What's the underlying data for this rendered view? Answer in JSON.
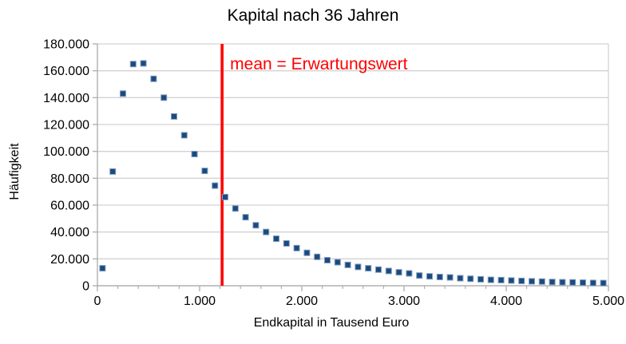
{
  "chart_data": {
    "type": "scatter",
    "title": "Kapital nach 36 Jahren",
    "xlabel": "Endkapital in Tausend Euro",
    "ylabel": "Häufigkeit",
    "xlim": [
      0,
      5000
    ],
    "ylim": [
      0,
      180000
    ],
    "grid": "horizontal",
    "legend_position": "none",
    "x_ticks": {
      "values": [
        0,
        1000,
        2000,
        3000,
        4000,
        5000
      ],
      "labels": [
        "0",
        "1.000",
        "2.000",
        "3.000",
        "4.000",
        "5.000"
      ],
      "minor_interval": 200
    },
    "y_ticks": {
      "values": [
        0,
        20000,
        40000,
        60000,
        80000,
        100000,
        120000,
        140000,
        160000,
        180000
      ],
      "labels": [
        "0",
        "20.000",
        "40.000",
        "60.000",
        "80.000",
        "100.000",
        "120.000",
        "140.000",
        "160.000",
        "180.000"
      ]
    },
    "mean_line": {
      "x": 1220,
      "color": "#FF0000",
      "label": "mean = Erwartungswert"
    },
    "series": [
      {
        "name": "Häufigkeit",
        "marker": "square",
        "color": "#1B4A7E",
        "edge_color": "#7E9CC0",
        "points": [
          [
            50,
            13000
          ],
          [
            150,
            85000
          ],
          [
            250,
            143000
          ],
          [
            350,
            165000
          ],
          [
            450,
            165500
          ],
          [
            550,
            154000
          ],
          [
            650,
            140000
          ],
          [
            750,
            126000
          ],
          [
            850,
            112000
          ],
          [
            950,
            98000
          ],
          [
            1050,
            85500
          ],
          [
            1150,
            74500
          ],
          [
            1250,
            66000
          ],
          [
            1350,
            57500
          ],
          [
            1450,
            51000
          ],
          [
            1550,
            45000
          ],
          [
            1650,
            40000
          ],
          [
            1750,
            35000
          ],
          [
            1850,
            31500
          ],
          [
            1950,
            28000
          ],
          [
            2050,
            24500
          ],
          [
            2150,
            21500
          ],
          [
            2250,
            19000
          ],
          [
            2350,
            17500
          ],
          [
            2450,
            15500
          ],
          [
            2550,
            14000
          ],
          [
            2650,
            13000
          ],
          [
            2750,
            12000
          ],
          [
            2850,
            11000
          ],
          [
            2950,
            10000
          ],
          [
            3050,
            9200
          ],
          [
            3150,
            7600
          ],
          [
            3250,
            7000
          ],
          [
            3350,
            6500
          ],
          [
            3450,
            6200
          ],
          [
            3550,
            5600
          ],
          [
            3650,
            5200
          ],
          [
            3750,
            4800
          ],
          [
            3850,
            4400
          ],
          [
            3950,
            4200
          ],
          [
            4050,
            3900
          ],
          [
            4150,
            3600
          ],
          [
            4250,
            3300
          ],
          [
            4350,
            3100
          ],
          [
            4450,
            2800
          ],
          [
            4550,
            2600
          ],
          [
            4650,
            2500
          ],
          [
            4750,
            2300
          ],
          [
            4850,
            2100
          ],
          [
            4950,
            2000
          ]
        ]
      }
    ]
  },
  "colors": {
    "background": "#FFFFFF",
    "grid": "#D2D2D2",
    "axis": "#B0B0B0",
    "text": "#000000",
    "marker": "#1B4A7E",
    "marker_edge": "#7E9CC0",
    "mean": "#FF0000"
  }
}
